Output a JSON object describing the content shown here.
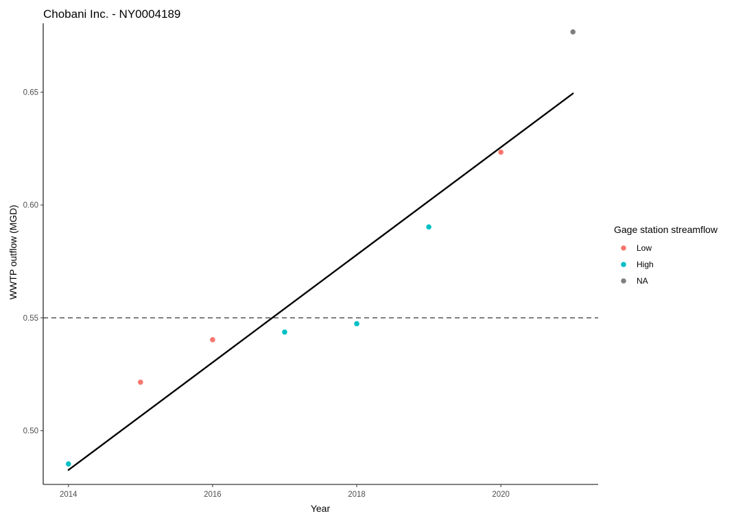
{
  "chart_data": {
    "type": "scatter",
    "title": "Chobani Inc. - NY0004189",
    "xlabel": "Year",
    "ylabel": "WWTP outflow (MGD)",
    "xlim": [
      2013.65,
      2021.35
    ],
    "ylim": [
      0.4762,
      0.6805
    ],
    "x_ticks": [
      2014,
      2016,
      2018,
      2020
    ],
    "x_tick_labels": [
      "2014",
      "2016",
      "2018",
      "2020"
    ],
    "y_ticks": [
      0.5,
      0.55,
      0.6,
      0.65
    ],
    "y_tick_labels": [
      "0.50",
      "0.55",
      "0.60",
      "0.65"
    ],
    "grid": false,
    "legend": {
      "title": "Gage station streamflow",
      "position": "right",
      "entries": [
        {
          "label": "Low",
          "color": "#F8766D"
        },
        {
          "label": "High",
          "color": "#00BFC4"
        },
        {
          "label": "NA",
          "color": "#7F7F7F"
        }
      ]
    },
    "points": [
      {
        "x": 2014,
        "y": 0.4853,
        "group": "High"
      },
      {
        "x": 2015,
        "y": 0.5215,
        "group": "Low"
      },
      {
        "x": 2016,
        "y": 0.5403,
        "group": "Low"
      },
      {
        "x": 2017,
        "y": 0.5437,
        "group": "High"
      },
      {
        "x": 2018,
        "y": 0.5474,
        "group": "High"
      },
      {
        "x": 2019,
        "y": 0.5903,
        "group": "High"
      },
      {
        "x": 2020,
        "y": 0.6234,
        "group": "Low"
      },
      {
        "x": 2021,
        "y": 0.6767,
        "group": "NA"
      }
    ],
    "trend_line": {
      "x": [
        2014,
        2021
      ],
      "y": [
        0.4826,
        0.6494
      ],
      "color": "#000000"
    },
    "reference_line": {
      "y": 0.55,
      "style": "dashed",
      "color": "#333333"
    },
    "colors": {
      "Low": "#F8766D",
      "High": "#00BFC4",
      "NA": "#7F7F7F"
    }
  }
}
